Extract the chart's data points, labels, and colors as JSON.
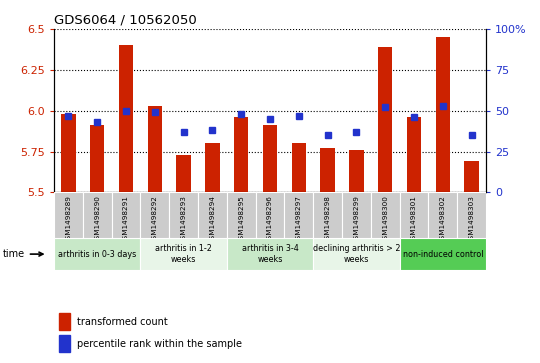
{
  "title": "GDS6064 / 10562050",
  "samples": [
    "GSM1498289",
    "GSM1498290",
    "GSM1498291",
    "GSM1498292",
    "GSM1498293",
    "GSM1498294",
    "GSM1498295",
    "GSM1498296",
    "GSM1498297",
    "GSM1498298",
    "GSM1498299",
    "GSM1498300",
    "GSM1498301",
    "GSM1498302",
    "GSM1498303"
  ],
  "bar_values": [
    5.98,
    5.91,
    6.4,
    6.03,
    5.73,
    5.8,
    5.96,
    5.91,
    5.8,
    5.77,
    5.76,
    6.39,
    5.96,
    6.45,
    5.69
  ],
  "dot_values": [
    47,
    43,
    50,
    49,
    37,
    38,
    48,
    45,
    47,
    35,
    37,
    52,
    46,
    53,
    35
  ],
  "ymin": 5.5,
  "ymax": 6.5,
  "y2min": 0,
  "y2max": 100,
  "yticks": [
    5.5,
    5.75,
    6.0,
    6.25,
    6.5
  ],
  "y2ticks": [
    0,
    25,
    50,
    75,
    100
  ],
  "y2ticklabels": [
    "0",
    "25",
    "50",
    "75",
    "100%"
  ],
  "bar_color": "#cc2200",
  "dot_color": "#2233cc",
  "bar_bottom": 5.5,
  "groups": [
    {
      "label": "arthritis in 0-3 days",
      "start": 0,
      "end": 3,
      "color": "#c8e8c8"
    },
    {
      "label": "arthritis in 1-2\nweeks",
      "start": 3,
      "end": 6,
      "color": "#e8f5e8"
    },
    {
      "label": "arthritis in 3-4\nweeks",
      "start": 6,
      "end": 9,
      "color": "#c8e8c8"
    },
    {
      "label": "declining arthritis > 2\nweeks",
      "start": 9,
      "end": 12,
      "color": "#e8f5e8"
    },
    {
      "label": "non-induced control",
      "start": 12,
      "end": 15,
      "color": "#55cc55"
    }
  ],
  "sample_bg_color": "#cccccc",
  "xlabel": "time",
  "legend_bar_label": "transformed count",
  "legend_dot_label": "percentile rank within the sample"
}
